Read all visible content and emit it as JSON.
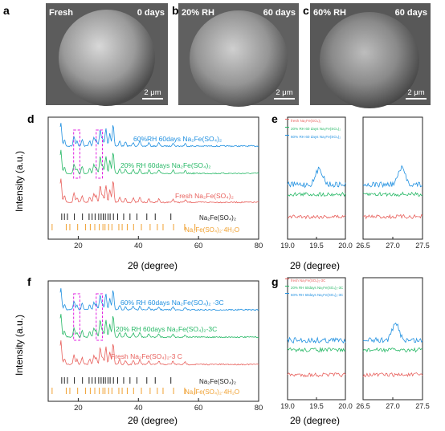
{
  "panels": {
    "sem": [
      {
        "letter": "a",
        "tag": "Fresh",
        "days": "0 days",
        "scale": "2 μm",
        "tone": "#6e6e6e"
      },
      {
        "letter": "b",
        "tag": "20% RH",
        "days": "60 days",
        "scale": "2 μm",
        "tone": "#767676"
      },
      {
        "letter": "c",
        "tag": "60% RH",
        "days": "60 days",
        "scale": "2 μm",
        "tone": "#6a6a6a"
      }
    ],
    "d": {
      "letter": "d"
    },
    "e": {
      "letter": "e"
    },
    "f": {
      "letter": "f"
    },
    "g": {
      "letter": "g"
    }
  },
  "colors": {
    "blue": "#1e8fe0",
    "green": "#27b866",
    "red": "#e8605c",
    "black": "#222222",
    "orange": "#f0a030",
    "magenta": "#e020e0"
  },
  "chart_data": [
    {
      "id": "d",
      "type": "line",
      "xlabel": "2θ (degree)",
      "ylabel": "Intensity (a.u.)",
      "xlim": [
        10,
        80
      ],
      "xticks": [
        20,
        40,
        60,
        80
      ],
      "series": [
        {
          "name": "60%RH 60days Na₂Fe(SO₄)₂",
          "color": "#1e8fe0"
        },
        {
          "name": "20% RH 60days  Na₂Fe(SO₄)₂",
          "color": "#27b866"
        },
        {
          "name": "Fresh Na₂Fe(SO₄)₂",
          "color": "#e8605c"
        }
      ],
      "peaks_2theta": [
        14.2,
        15.4,
        18.6,
        19.6,
        21.3,
        23.8,
        25.2,
        26.0,
        27.3,
        28.1,
        29.2,
        30.5,
        31.6,
        33.8,
        35.7,
        38.3,
        40.5,
        43.5,
        46.8,
        51.5,
        55.6
      ],
      "reference_ticks": [
        {
          "name": "Na₂Fe(SO₄)₂",
          "color": "#222222",
          "positions": [
            14.5,
            15.4,
            16.4,
            18.7,
            21.4,
            23.6,
            24.6,
            25.6,
            26.8,
            27.6,
            28.3,
            29.0,
            29.9,
            30.6,
            31.7,
            33.1,
            35.1,
            37.2,
            39.5,
            42.8,
            45.6,
            50.8
          ]
        },
        {
          "name": "Na₂Fe(SO₄)₂·4H₂O",
          "color": "#f0a030",
          "positions": [
            11.3,
            16.0,
            17.2,
            19.8,
            22.4,
            24.0,
            25.5,
            27.0,
            28.2,
            28.9,
            30.1,
            31.2,
            33.5,
            34.6,
            36.3,
            38.4,
            41.0,
            43.9,
            46.3,
            48.2,
            51.7,
            55.4,
            58.8
          ]
        }
      ],
      "highlight_ranges": [
        [
          19,
          20
        ],
        [
          26.5,
          27.5
        ]
      ]
    },
    {
      "id": "e",
      "type": "line",
      "xlabel": "2θ (degree)",
      "ylabel": "",
      "segments": [
        {
          "xlim": [
            19.0,
            20.0
          ],
          "xticks": [
            "19.0",
            "19.5",
            "20.0"
          ]
        },
        {
          "xlim": [
            26.5,
            27.5
          ],
          "xticks": [
            "26.5",
            "27.0",
            "27.5"
          ]
        }
      ],
      "series": [
        {
          "name": "fresh  Na₂Fe(SO₄)₂",
          "color": "#e8605c",
          "peaks": []
        },
        {
          "name": "20% RH 60 days Na₂Fe(SO₄)₂",
          "color": "#27b866",
          "peaks": []
        },
        {
          "name": "60% RH 60 days Na₂Fe(SO₄)₂",
          "color": "#1e8fe0",
          "peaks": [
            19.55,
            27.15
          ]
        }
      ]
    },
    {
      "id": "f",
      "type": "line",
      "xlabel": "2θ (degree)",
      "ylabel": "Intensity (a.u.)",
      "xlim": [
        10,
        80
      ],
      "xticks": [
        20,
        40,
        60,
        80
      ],
      "series": [
        {
          "name": "60% RH 60days Na₂Fe(SO₄)₂ -3C",
          "color": "#1e8fe0"
        },
        {
          "name": "20% RH 60days Na₂Fe(SO₄)₂-3C",
          "color": "#27b866"
        },
        {
          "name": "Fresh  Na₂Fe(SO₄)₂-3 C",
          "color": "#e8605c"
        }
      ],
      "reference_ticks": [
        {
          "name": "Na₂Fe(SO₄)₂",
          "color": "#222222",
          "positions": [
            14.5,
            15.4,
            16.4,
            18.7,
            21.4,
            23.6,
            24.6,
            25.6,
            26.8,
            27.6,
            28.3,
            29.0,
            29.9,
            30.6,
            31.7,
            33.1,
            35.1,
            37.2,
            39.5,
            42.8,
            45.6,
            50.8
          ]
        },
        {
          "name": "Na₂Fe(SO₄)₂·4H₂O",
          "color": "#f0a030",
          "positions": [
            11.3,
            16.0,
            17.2,
            19.8,
            22.4,
            24.0,
            25.5,
            27.0,
            28.2,
            28.9,
            30.1,
            31.2,
            33.5,
            34.6,
            36.3,
            38.4,
            41.0,
            43.9,
            46.3,
            48.2,
            51.7,
            55.4,
            58.8
          ]
        }
      ],
      "highlight_ranges": [
        [
          19,
          20
        ],
        [
          26.5,
          27.5
        ]
      ]
    },
    {
      "id": "g",
      "type": "line",
      "xlabel": "2θ (degree)",
      "ylabel": "",
      "segments": [
        {
          "xlim": [
            19.0,
            20.0
          ],
          "xticks": [
            "19.0",
            "19.5",
            "20.0"
          ]
        },
        {
          "xlim": [
            26.5,
            27.5
          ],
          "xticks": [
            "26.5",
            "27.0",
            "27.5"
          ]
        }
      ],
      "series": [
        {
          "name": "fresh  Na₂Fe(SO₄)₂-3C",
          "color": "#e8605c",
          "peaks": []
        },
        {
          "name": "20% RH 60days Na₂Fe(SO₄)₂-3C",
          "color": "#27b866",
          "peaks": []
        },
        {
          "name": "60% RH 60days Na₂Fe(SO₄)₂-3C",
          "color": "#1e8fe0",
          "peaks": [
            27.05
          ]
        }
      ]
    }
  ]
}
